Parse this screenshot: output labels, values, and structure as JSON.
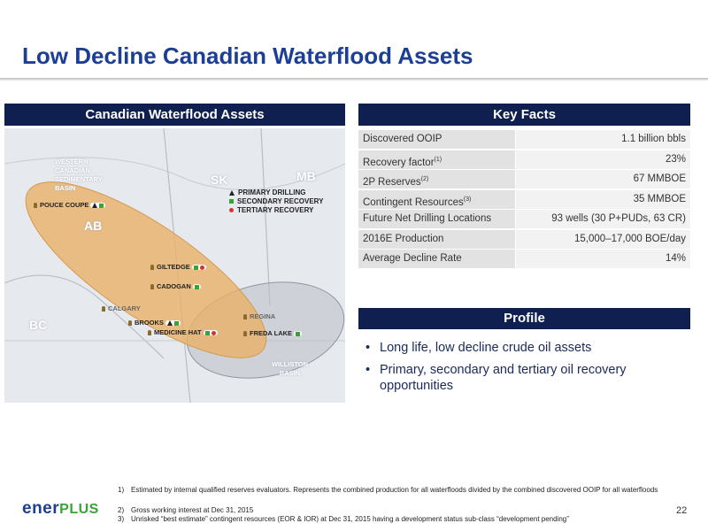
{
  "title": "Low Decline Canadian Waterflood Assets",
  "map_panel": {
    "heading": "Canadian Waterflood Assets",
    "regions": [
      "WESTERN CANADIAN SEDIMENTARY BASIN",
      "SK",
      "MB",
      "AB",
      "BC",
      "WILLISTON BASIN"
    ],
    "legend": [
      "PRIMARY DRILLING",
      "SECONDARY RECOVERY",
      "TERTIARY RECOVERY"
    ],
    "places": [
      "POUCE COUPE",
      "GILTEDGE",
      "CADOGAN",
      "CALGARY",
      "BROOKS",
      "MEDICINE HAT",
      "REGINA",
      "FREDA LAKE"
    ]
  },
  "key_facts": {
    "heading": "Key Facts",
    "rows": [
      {
        "label": "Discovered OOIP",
        "value": "1.1 billion bbls"
      },
      {
        "label": "Recovery factor",
        "note": "(1)",
        "value": "23%"
      },
      {
        "label": "2P Reserves",
        "note": "(2)",
        "value": "67 MMBOE"
      },
      {
        "label": "Contingent Resources",
        "note": "(3)",
        "value": "35 MMBOE"
      },
      {
        "label": "Future Net Drilling Locations",
        "value": "93 wells (30 P+PUDs, 63 CR)"
      },
      {
        "label": "2016E Production",
        "value": "15,000–17,000 BOE/day"
      },
      {
        "label": "Average Decline Rate",
        "value": "14%"
      }
    ]
  },
  "profile": {
    "heading": "Profile",
    "bullets": [
      "Long life, low decline crude oil assets",
      "Primary, secondary and tertiary oil recovery opportunities"
    ]
  },
  "footnotes": [
    {
      "number": "1)",
      "text": "Estimated by internal qualified reserves evaluators. Represents the combined production for all waterfloods divided by the combined discovered OOIP for all waterfloods"
    },
    {
      "number": "2)",
      "text": "Gross working interest at Dec 31, 2015"
    },
    {
      "number": "3)",
      "text": "Unrisked “best estimate” contingent resources (EOR & IOR) at Dec 31, 2015 having a development status sub-class “development pending”"
    }
  ],
  "logo": [
    "ener",
    "PLUS"
  ],
  "page_number": "22"
}
